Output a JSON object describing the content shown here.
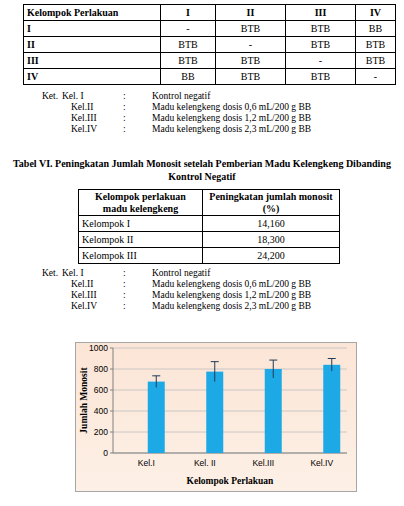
{
  "table1": {
    "header": [
      "Kelompok Perlakuan",
      "I",
      "II",
      "III",
      "IV"
    ],
    "rows": [
      [
        "I",
        "-",
        "BTB",
        "BTB",
        "BB"
      ],
      [
        "II",
        "BTB",
        "-",
        "BTB",
        "BTB"
      ],
      [
        "III",
        "BTB",
        "BTB",
        "-",
        "BTB"
      ],
      [
        "IV",
        "BB",
        "BTB",
        "BTB",
        "-"
      ]
    ]
  },
  "notes1": {
    "prefix": "Ket.",
    "separator": ":",
    "items": [
      {
        "label": "Kel. I",
        "text": "Kontrol negatif"
      },
      {
        "label": "Kel.II",
        "text": "Madu kelengkeng dosis 0,6 mL/200 g BB"
      },
      {
        "label": "Kel.III",
        "text": "Madu kelengkeng dosis 1,2 mL/200 g BB"
      },
      {
        "label": "Kel.IV",
        "text": "Madu kelengkeng dosis 2,3 mL/200 g BB"
      }
    ]
  },
  "caption": {
    "lines": [
      "Tabel VI. Peningkatan Jumlah Monosit setelah Pemberian Madu Kelengkeng Dibanding",
      "Kontrol Negatif"
    ]
  },
  "table2": {
    "header": [
      "Kelompok perlakuan madu kelengkeng",
      "Peningkatan jumlah monosit (%)"
    ],
    "rows": [
      [
        "Kelompok I",
        "14,160"
      ],
      [
        "Kelompok II",
        "18,300"
      ],
      [
        "Kelompok III",
        "24,200"
      ]
    ]
  },
  "notes2": {
    "prefix": "Ket.",
    "separator": ":",
    "items": [
      {
        "label": "Kel. I",
        "text": "Kontrol negatif"
      },
      {
        "label": "Kel.II",
        "text": "Madu kelengkeng dosis 0,6 mL/200 g BB"
      },
      {
        "label": "Kel.III",
        "text": "Madu kelengkeng dosis 1,2 mL/200 g BB"
      },
      {
        "label": "Kel.IV",
        "text": "Madu kelengkeng dosis 2,3 mL/200 g BB"
      }
    ]
  },
  "chart_data": {
    "type": "bar",
    "x_label": "Kelompok Perlakuan",
    "y_label": "Jumlah Monosit",
    "categories": [
      "Kel.I",
      "Kel. II",
      "Kel.III",
      "Kel.IV"
    ],
    "values": [
      680,
      775,
      800,
      840
    ],
    "errors": [
      55,
      95,
      85,
      60
    ],
    "color": "#1ca9e6",
    "ylim": [
      0,
      1000
    ],
    "yticks": [
      0,
      200,
      400,
      600,
      800,
      1000
    ],
    "grid": true
  }
}
